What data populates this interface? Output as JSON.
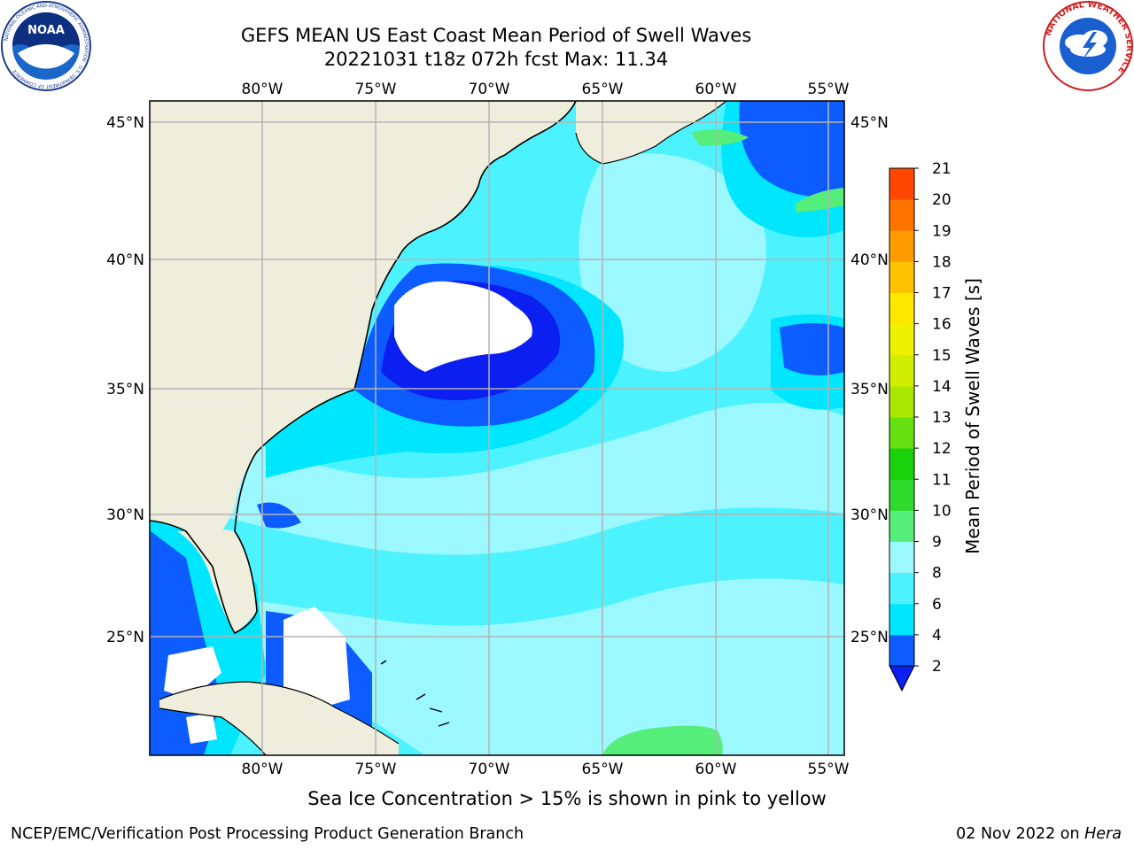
{
  "title": {
    "line1": "GEFS MEAN US East Coast Mean Period of Swell Waves",
    "line2": "20221031 t18z 072h fcst   Max: 11.34"
  },
  "map": {
    "lon_labels": [
      "80°W",
      "75°W",
      "70°W",
      "65°W",
      "60°W",
      "55°W"
    ],
    "lat_labels": [
      "45°N",
      "40°N",
      "35°N",
      "30°N",
      "25°N"
    ],
    "extent": {
      "lon_min": -85,
      "lon_max": -54.3,
      "lat_min": 20.5,
      "lat_max": 46
    }
  },
  "colorbar": {
    "label": "Mean Period of Swell Waves [s]",
    "ticks": [
      "2",
      "4",
      "6",
      "8",
      "9",
      "10",
      "11",
      "12",
      "13",
      "14",
      "15",
      "16",
      "17",
      "18",
      "19",
      "20",
      "21"
    ],
    "colors": [
      "#0c5cff",
      "#00e6ff",
      "#4df2ff",
      "#9bf8ff",
      "#56ee7a",
      "#2fd92e",
      "#19d10a",
      "#66e010",
      "#a8e800",
      "#d2ee00",
      "#eef200",
      "#ffe800",
      "#ffc200",
      "#ff9d00",
      "#ff7300",
      "#ff4600",
      "#ff1000"
    ],
    "under_color": "#0a1ff0"
  },
  "note": "Sea Ice Concentration > 15% is shown in pink to yellow",
  "footer": {
    "left": "NCEP/EMC/Verification Post Processing Product Generation Branch",
    "date": "02 Nov 2022 on ",
    "machine": "Hera"
  },
  "logos": {
    "noaa_text": "NOAA",
    "noaa_ring": "NATIONAL OCEANIC AND ATMOSPHERIC ADMINISTRATION · U.S. DEPARTMENT OF COMMERCE",
    "nws_ring": "NATIONAL WEATHER SERVICE"
  }
}
